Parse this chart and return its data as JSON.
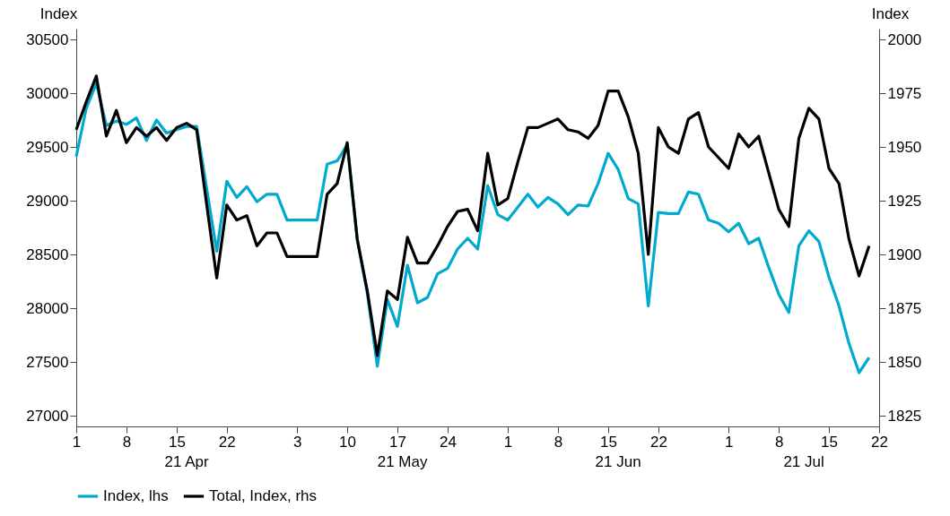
{
  "chart_data": {
    "type": "line",
    "ylabel": "Index",
    "y2label": "Index",
    "categories": [
      "1",
      null,
      null,
      null,
      null,
      "8",
      null,
      null,
      null,
      null,
      "15",
      null,
      null,
      null,
      null,
      "22",
      null,
      null,
      null,
      null,
      null,
      null,
      "3",
      null,
      null,
      null,
      null,
      "10",
      null,
      null,
      null,
      null,
      "17",
      null,
      null,
      null,
      null,
      "24",
      null,
      null,
      null,
      null,
      null,
      "1",
      null,
      null,
      null,
      null,
      "8",
      null,
      null,
      null,
      null,
      "15",
      null,
      null,
      null,
      null,
      "22",
      null,
      null,
      null,
      null,
      null,
      null,
      "1",
      null,
      null,
      null,
      null,
      "8",
      null,
      null,
      null,
      null,
      "15",
      null,
      null,
      null,
      null,
      "22"
    ],
    "series": [
      {
        "name": "Index, lhs",
        "color": "#00a9ce",
        "values": [
          29410,
          29860,
          30090,
          29700,
          29740,
          29710,
          29770,
          29560,
          29750,
          29630,
          29660,
          29690,
          29690,
          29110,
          28530,
          29180,
          29030,
          29130,
          28990,
          29060,
          29060,
          28820,
          28820,
          28820,
          28820,
          29340,
          29370,
          29520,
          28640,
          28140,
          27460,
          28080,
          27830,
          28400,
          28050,
          28100,
          28320,
          28370,
          28550,
          28650,
          28550,
          29140,
          28870,
          28820,
          28940,
          29060,
          28940,
          29030,
          28970,
          28870,
          28960,
          28950,
          29160,
          29440,
          29290,
          29020,
          28970,
          28020,
          28890,
          28880,
          28880,
          29080,
          29060,
          28820,
          28790,
          28710,
          28790,
          28600,
          28650,
          28380,
          28130,
          27960,
          28580,
          28720,
          28620,
          28290,
          28020,
          27670,
          27400,
          27540,
          null
        ]
      },
      {
        "name": "Total, Index, rhs",
        "color": "#000000",
        "axis": "y2",
        "values": [
          1958,
          1971,
          1983,
          1955,
          1967,
          1952,
          1959,
          1955,
          1959,
          1953,
          1959,
          1961,
          1958,
          1923,
          1889,
          1923,
          1916,
          1918,
          1904,
          1910,
          1910,
          1899,
          1899,
          1899,
          1899,
          1928,
          1933,
          1952,
          1907,
          1883,
          1853,
          1883,
          1879,
          1908,
          1896,
          1896,
          1904,
          1913,
          1920,
          1921,
          1911,
          1947,
          1923,
          1926,
          1943,
          1959,
          1959,
          1961,
          1963,
          1958,
          1957,
          1954,
          1960,
          1976,
          1976,
          1964,
          1947,
          1900,
          1959,
          1950,
          1947,
          1963,
          1966,
          1950,
          1945,
          1940,
          1956,
          1950,
          1955,
          1938,
          1921,
          1913,
          1954,
          1968,
          1963,
          1940,
          1933,
          1907,
          1890,
          1904,
          null
        ]
      }
    ],
    "ylim": [
      26900,
      30600
    ],
    "yticks": [
      27000,
      27500,
      28000,
      28500,
      29000,
      29500,
      30000,
      30500
    ],
    "y2lim": [
      1820,
      2005
    ],
    "y2ticks": [
      1825,
      1850,
      1875,
      1900,
      1925,
      1950,
      1975,
      2000
    ],
    "legend": "bottom left",
    "annotations": [
      "21 Apr",
      "21 May",
      "21 Jun",
      "21 Jul"
    ]
  }
}
